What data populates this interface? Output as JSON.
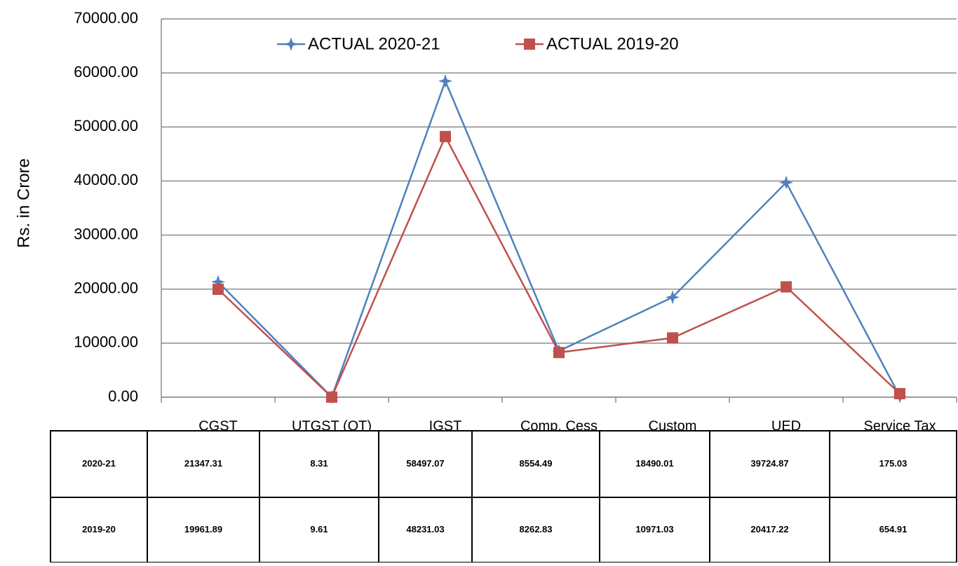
{
  "chart_data": {
    "type": "line",
    "y_label": "Rs. in Crore",
    "categories": [
      "CGST",
      "UTGST (OT)",
      "IGST",
      "Comp. Cess",
      "Custom",
      "UED",
      "Service Tax"
    ],
    "series": [
      {
        "name": "ACTUAL 2020-21",
        "color": "#4f81bd",
        "marker": "star",
        "values": [
          21347.31,
          8.31,
          58497.07,
          8554.49,
          18490.01,
          39724.87,
          175.03
        ]
      },
      {
        "name": "ACTUAL 2019-20",
        "color": "#c0504d",
        "marker": "square",
        "values": [
          19961.89,
          9.61,
          48231.03,
          8262.83,
          10971.03,
          20417.22,
          654.91
        ]
      }
    ],
    "ylim": [
      0,
      70000
    ],
    "yticks": [
      {
        "value": 0,
        "label": "0.00"
      },
      {
        "value": 10000,
        "label": "10000.00"
      },
      {
        "value": 20000,
        "label": "20000.00"
      },
      {
        "value": 30000,
        "label": "30000.00"
      },
      {
        "value": 40000,
        "label": "40000.00"
      },
      {
        "value": 50000,
        "label": "50000.00"
      },
      {
        "value": 60000,
        "label": "60000.00"
      },
      {
        "value": 70000,
        "label": "70000.00"
      }
    ],
    "grid": true,
    "legend": "top",
    "table": {
      "row_labels": [
        "2020-21",
        "2019-20"
      ]
    }
  }
}
